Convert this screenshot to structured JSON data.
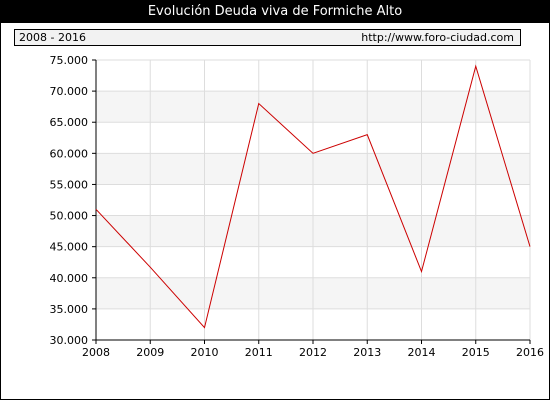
{
  "title": "Evolución Deuda viva de Formiche Alto",
  "period_label": "2008 - 2016",
  "source_url": "http://www.foro-ciudad.com",
  "colors": {
    "line": "#cc0000",
    "band": "#f5f5f5",
    "grid": "#dddddd",
    "axis": "#000000"
  },
  "chart_data": {
    "type": "line",
    "title": "Evolución Deuda viva de Formiche Alto",
    "x": [
      2008,
      2009,
      2010,
      2011,
      2012,
      2013,
      2014,
      2015,
      2016
    ],
    "x_tick_labels": [
      "2008",
      "2009",
      "2010",
      "2011",
      "2012",
      "2013",
      "2014",
      "2015",
      "2016"
    ],
    "series": [
      {
        "values": [
          51000,
          41700,
          32000,
          68000,
          60000,
          63000,
          41000,
          74000,
          45000
        ]
      }
    ],
    "ylim": [
      30000,
      75000
    ],
    "y_ticks": [
      30000,
      35000,
      40000,
      45000,
      50000,
      55000,
      60000,
      65000,
      70000,
      75000
    ],
    "y_tick_labels": [
      "30.000",
      "35.000",
      "40.000",
      "45.000",
      "50.000",
      "55.000",
      "60.000",
      "65.000",
      "70.000",
      "75.000"
    ],
    "grid": true,
    "legend": "none"
  }
}
